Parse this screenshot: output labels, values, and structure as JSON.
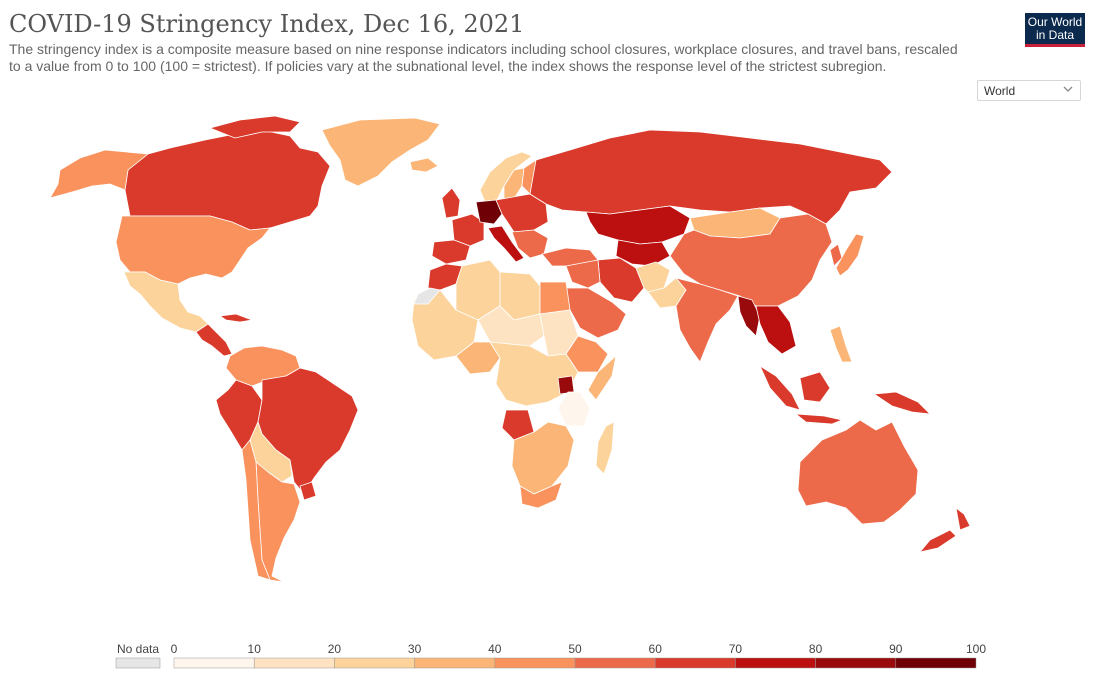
{
  "header": {
    "title": "COVID-19 Stringency Index, Dec 16, 2021",
    "subtitle": "The stringency index is a composite measure based on nine response indicators including school closures, workplace closures, and travel bans, rescaled to a value from 0 to 100 (100 = strictest). If policies vary at the subnational level, the index shows the response level of the strictest subregion."
  },
  "logo": {
    "line1": "Our World",
    "line2": "in Data"
  },
  "region_select": {
    "value": "World"
  },
  "legend": {
    "no_data_label": "No data",
    "ticks": [
      "0",
      "10",
      "20",
      "30",
      "40",
      "50",
      "60",
      "70",
      "80",
      "90",
      "100"
    ],
    "bin_colors": [
      "#fef6ec",
      "#fde3c2",
      "#fcd39a",
      "#fbb677",
      "#f9925c",
      "#ec6a4a",
      "#d93a2b",
      "#bb0f10",
      "#990a0c",
      "#6f0005"
    ],
    "no_data_color": "#e6e6e6"
  },
  "colors": {
    "ocean": "#ffffff",
    "border": "#ffffff",
    "no_data": "#e6e6e6"
  }
}
